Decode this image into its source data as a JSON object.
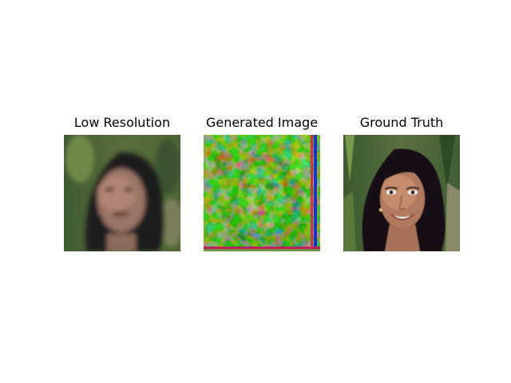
{
  "figure": {
    "panels": [
      {
        "title": "Low Resolution",
        "image": "low-resolution-face"
      },
      {
        "title": "Generated Image",
        "image": "generated-face"
      },
      {
        "title": "Ground Truth",
        "image": "ground-truth-face"
      }
    ]
  }
}
